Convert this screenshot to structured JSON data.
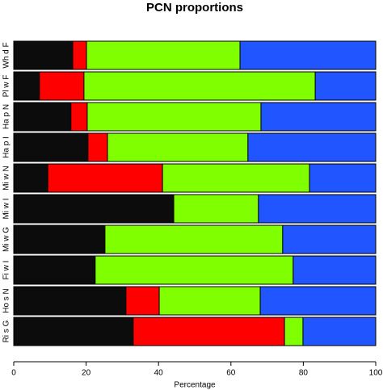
{
  "chart_data": {
    "type": "stacked_barh",
    "title": "PCN proportions",
    "xlabel": "Percentage",
    "categories": [
      "Wh d F",
      "Pl w F",
      "Ha p N",
      "Ha p I",
      "Mi w N",
      "Mi w I",
      "Mi w G",
      "Fi w I",
      "Ho s N",
      "Ri s G"
    ],
    "series": [
      {
        "color": "#0c0c0c",
        "values": [
          16.3,
          7.1,
          15.8,
          20.5,
          9.4,
          44.2,
          25.2,
          22.5,
          31.0,
          33.0
        ]
      },
      {
        "color": "#ff0000",
        "values": [
          3.8,
          12.3,
          4.5,
          5.4,
          31.7,
          0,
          0,
          0,
          9.2,
          41.8
        ]
      },
      {
        "color": "#80ff00",
        "values": [
          42.4,
          63.9,
          48.0,
          38.8,
          40.6,
          23.4,
          49.1,
          54.7,
          27.9,
          5.1
        ]
      },
      {
        "color": "#2155ff",
        "values": [
          37.5,
          16.7,
          31.7,
          35.3,
          18.3,
          32.4,
          25.7,
          22.8,
          31.9,
          20.1
        ]
      }
    ],
    "xlim": [
      0,
      100
    ],
    "xticks": [
      0,
      20,
      40,
      60,
      80,
      100
    ]
  }
}
